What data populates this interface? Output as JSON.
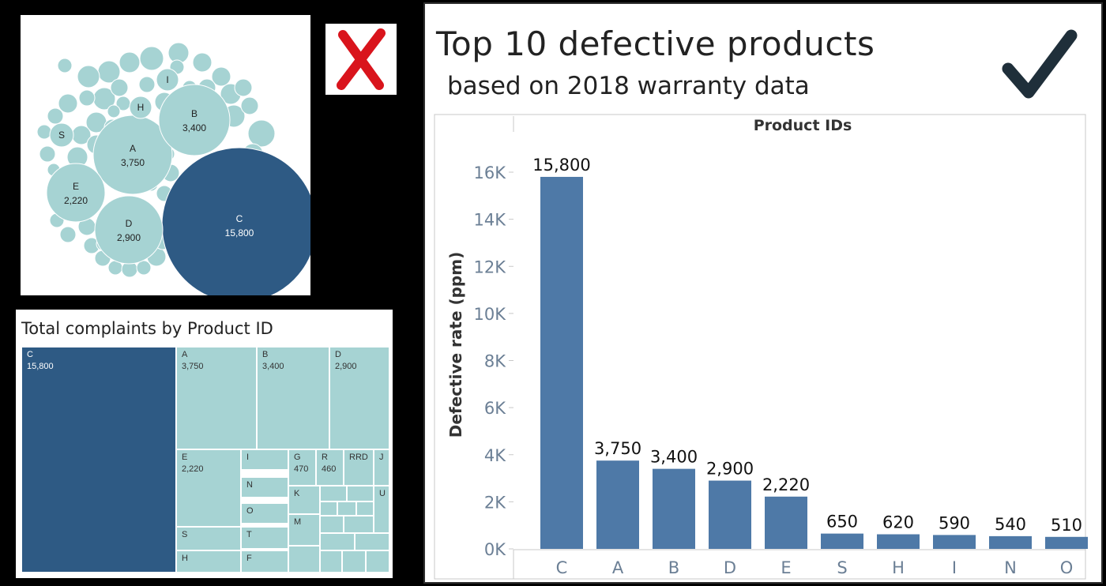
{
  "colors": {
    "dark_blue": "#2e5a84",
    "light_teal": "#a6d3d3",
    "bar_blue": "#4e79a7",
    "red_x": "#d9141c",
    "check": "#1f2f3a"
  },
  "icons": {
    "wrong": "x-mark-icon",
    "correct": "check-mark-icon"
  },
  "bubble_chart": {
    "bubbles": [
      {
        "label": "C",
        "value": "15,800",
        "dark": true
      },
      {
        "label": "A",
        "value": "3,750",
        "dark": false
      },
      {
        "label": "B",
        "value": "3,400",
        "dark": false
      },
      {
        "label": "D",
        "value": "2,900",
        "dark": false
      },
      {
        "label": "E",
        "value": "2,220",
        "dark": false
      },
      {
        "label": "H",
        "value": "",
        "dark": false
      },
      {
        "label": "I",
        "value": "",
        "dark": false
      },
      {
        "label": "S",
        "value": "",
        "dark": false
      }
    ]
  },
  "treemap": {
    "title": "Total complaints by Product ID",
    "cells": [
      {
        "label": "C",
        "value": "15,800",
        "dark": true
      },
      {
        "label": "A",
        "value": "3,750",
        "dark": false
      },
      {
        "label": "B",
        "value": "3,400",
        "dark": false
      },
      {
        "label": "D",
        "value": "2,900",
        "dark": false
      },
      {
        "label": "E",
        "value": "2,220",
        "dark": false
      },
      {
        "label": "I",
        "value": "",
        "dark": false
      },
      {
        "label": "N",
        "value": "",
        "dark": false
      },
      {
        "label": "O",
        "value": "",
        "dark": false
      },
      {
        "label": "T",
        "value": "",
        "dark": false
      },
      {
        "label": "F",
        "value": "",
        "dark": false
      },
      {
        "label": "S",
        "value": "",
        "dark": false
      },
      {
        "label": "H",
        "value": "",
        "dark": false
      },
      {
        "label": "G",
        "value": "470",
        "dark": false
      },
      {
        "label": "R",
        "value": "460",
        "dark": false
      },
      {
        "label": "RRD",
        "value": "",
        "dark": false
      },
      {
        "label": "J",
        "value": "",
        "dark": false
      },
      {
        "label": "K",
        "value": "",
        "dark": false
      },
      {
        "label": "M",
        "value": "",
        "dark": false
      },
      {
        "label": "U",
        "value": "",
        "dark": false
      }
    ]
  },
  "chart_data": {
    "type": "bar",
    "title": "Top 10 defective products",
    "subtitle": "based on 2018 warranty data",
    "header_label": "Product IDs",
    "xlabel": "",
    "ylabel": "Defective rate (ppm)",
    "categories": [
      "C",
      "A",
      "B",
      "D",
      "E",
      "S",
      "H",
      "I",
      "N",
      "O"
    ],
    "values": [
      15800,
      3750,
      3400,
      2900,
      2220,
      650,
      620,
      590,
      540,
      510
    ],
    "value_labels": [
      "15,800",
      "3,750",
      "3,400",
      "2,900",
      "2,220",
      "650",
      "620",
      "590",
      "540",
      "510"
    ],
    "yticks": [
      0,
      2000,
      4000,
      6000,
      8000,
      10000,
      12000,
      14000,
      16000
    ],
    "ytick_labels": [
      "0K",
      "2K",
      "4K",
      "6K",
      "8K",
      "10K",
      "12K",
      "14K",
      "16K"
    ],
    "ylim": [
      0,
      16000
    ],
    "grid": false,
    "legend": "none"
  }
}
